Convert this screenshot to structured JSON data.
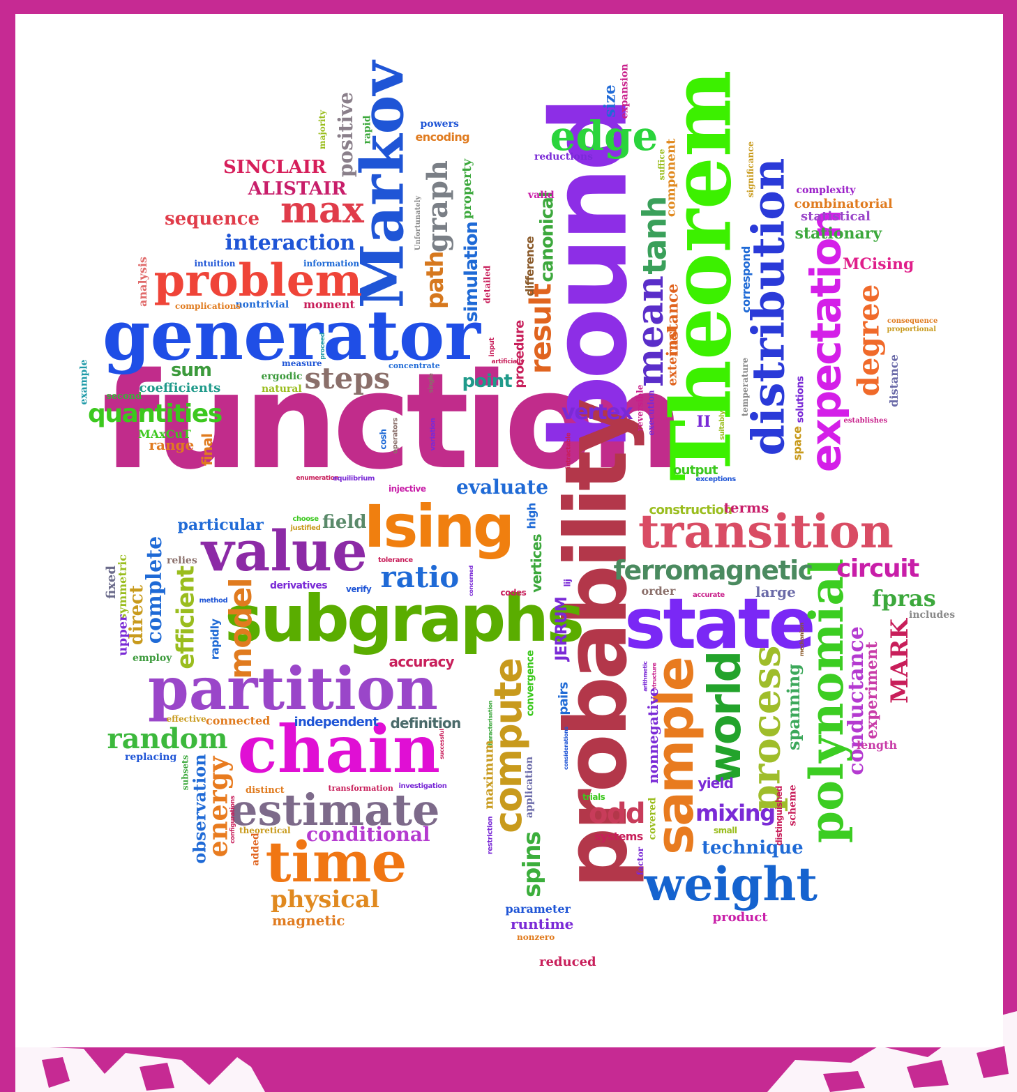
{
  "background": {
    "frame_color": "#c62a93",
    "canvas_color": "#ffffff"
  },
  "words": [
    {
      "t": "function",
      "c": "#c12c8b",
      "f": "c"
    },
    {
      "t": "Theorem",
      "c": "#3cf000",
      "f": "s"
    },
    {
      "t": "bound",
      "c": "#8d2ee6",
      "f": "c"
    },
    {
      "t": "probability",
      "c": "#b3374a",
      "f": "c"
    },
    {
      "t": "generator",
      "c": "#1f4ee6",
      "f": "s"
    },
    {
      "t": "subgraphs",
      "c": "#5aad00",
      "f": "c"
    },
    {
      "t": "partition",
      "c": "#9a46c9",
      "f": "s"
    },
    {
      "t": "chain",
      "c": "#e00fd4",
      "f": "s"
    },
    {
      "t": "Markov",
      "c": "#1f55d6",
      "f": "s"
    },
    {
      "t": "state",
      "c": "#7a28f5",
      "f": "c"
    },
    {
      "t": "transition",
      "c": "#d94c64",
      "f": "s"
    },
    {
      "t": "value",
      "c": "#8c2aa6",
      "f": "s"
    },
    {
      "t": "time",
      "c": "#f07613",
      "f": "s"
    },
    {
      "t": "Ising",
      "c": "#f07f0f",
      "f": "c"
    },
    {
      "t": "problem",
      "c": "#ef4438",
      "f": "s"
    },
    {
      "t": "estimate",
      "c": "#7d6a8a",
      "f": "s"
    },
    {
      "t": "distribution",
      "c": "#2a3ad8",
      "f": "s"
    },
    {
      "t": "polynomial",
      "c": "#3ccd22",
      "f": "s"
    },
    {
      "t": "sample",
      "c": "#e87b1f",
      "f": "c"
    },
    {
      "t": "expectation",
      "c": "#d41fe8",
      "f": "c"
    },
    {
      "t": "weight",
      "c": "#1563cf",
      "f": "s"
    },
    {
      "t": "edge",
      "c": "#2ad43c",
      "f": "s"
    },
    {
      "t": "max",
      "c": "#e03c4a",
      "f": "s"
    },
    {
      "t": "world",
      "c": "#23a32b",
      "f": "c"
    },
    {
      "t": "mean",
      "c": "#5a2ec9",
      "f": "s"
    },
    {
      "t": "compute",
      "c": "#c89a1c",
      "f": "c"
    },
    {
      "t": "process",
      "c": "#9fbd2a",
      "f": "s"
    },
    {
      "t": "degree",
      "c": "#f06a2a",
      "f": "s"
    },
    {
      "t": "random",
      "c": "#3cb83c",
      "f": "s"
    },
    {
      "t": "ratio",
      "c": "#1f6ad6",
      "f": "s"
    },
    {
      "t": "steps",
      "c": "#8a6f6a",
      "f": "s"
    },
    {
      "t": "ferromagnetic",
      "c": "#4a8a5f",
      "f": "c"
    },
    {
      "t": "tanh",
      "c": "#3aa05a",
      "f": "c"
    },
    {
      "t": "physical",
      "c": "#e0891f",
      "f": "s"
    },
    {
      "t": "energy",
      "c": "#e87b1f",
      "f": "s"
    },
    {
      "t": "model",
      "c": "#e07b1f",
      "f": "c"
    },
    {
      "t": "result",
      "c": "#e0641f",
      "f": "c"
    },
    {
      "t": "circuit",
      "c": "#c81ea8",
      "f": "c"
    },
    {
      "t": "quantities",
      "c": "#3cc81e",
      "f": "c"
    },
    {
      "t": "interaction",
      "c": "#1f55d6",
      "f": "s"
    },
    {
      "t": "conductance",
      "c": "#b43ad0",
      "f": "s"
    },
    {
      "t": "evaluate",
      "c": "#1f6ad6",
      "f": "s"
    },
    {
      "t": "efficient",
      "c": "#9abd1e",
      "f": "c"
    },
    {
      "t": "complete",
      "c": "#1f6ad6",
      "f": "s"
    },
    {
      "t": "fpras",
      "c": "#3ca83c",
      "f": "s"
    },
    {
      "t": "vertex",
      "c": "#7a2ad6",
      "f": "c"
    },
    {
      "t": "graph",
      "c": "#7a7f86",
      "f": "s"
    },
    {
      "t": "odd",
      "c": "#c83c5a",
      "f": "c"
    },
    {
      "t": "conditional",
      "c": "#b43ad0",
      "f": "s"
    },
    {
      "t": "observation",
      "c": "#1f6ad6",
      "f": "s"
    },
    {
      "t": "positive",
      "c": "#8a7f8a",
      "f": "s"
    },
    {
      "t": "mixing",
      "c": "#7a2ad6",
      "f": "c"
    },
    {
      "t": "MARK",
      "c": "#c81e5a",
      "f": "s"
    },
    {
      "t": "path",
      "c": "#d6781e",
      "f": "c"
    },
    {
      "t": "spins",
      "c": "#3cae3c",
      "f": "c"
    },
    {
      "t": "SINCLAIR",
      "c": "#d61e5a",
      "f": "s"
    },
    {
      "t": "ALISTAIR",
      "c": "#c81e6a",
      "f": "s"
    },
    {
      "t": "sequence",
      "c": "#e03c4a",
      "f": "s"
    },
    {
      "t": "field",
      "c": "#5a8a6a",
      "f": "s"
    },
    {
      "t": "technique",
      "c": "#1f6ad6",
      "f": "s"
    },
    {
      "t": "spanning",
      "c": "#3ca85a",
      "f": "s"
    },
    {
      "t": "particular",
      "c": "#1f6ad6",
      "f": "s"
    },
    {
      "t": "canonical",
      "c": "#3ca83c",
      "f": "c"
    },
    {
      "t": "instance",
      "c": "#e0641f",
      "f": "s"
    },
    {
      "t": "experiment",
      "c": "#c83ca8",
      "f": "s"
    },
    {
      "t": "magnetic",
      "c": "#e07b1f",
      "f": "s"
    },
    {
      "t": "sum",
      "c": "#3c9a3c",
      "f": "c"
    },
    {
      "t": "point",
      "c": "#1f9a8a",
      "f": "c"
    },
    {
      "t": "simulation",
      "c": "#1f6ad6",
      "f": "c"
    },
    {
      "t": "direct",
      "c": "#c89a1c",
      "f": "s"
    },
    {
      "t": "symmetric",
      "c": "#9abd1e",
      "f": "s"
    },
    {
      "t": "upper",
      "c": "#7a2ad6",
      "f": "s"
    },
    {
      "t": "fixed",
      "c": "#6a6a8a",
      "f": "s"
    },
    {
      "t": "component",
      "c": "#e0891f",
      "f": "s"
    },
    {
      "t": "external",
      "c": "#e0641f",
      "f": "s"
    },
    {
      "t": "stationary",
      "c": "#3ca83c",
      "f": "s"
    },
    {
      "t": "statistical",
      "c": "#9a46c9",
      "f": "s"
    },
    {
      "t": "combinatorial",
      "c": "#e07b1f",
      "f": "s"
    },
    {
      "t": "complexity",
      "c": "#9a1ec8",
      "f": "s"
    },
    {
      "t": "MCising",
      "c": "#e01e8a",
      "f": "s"
    },
    {
      "t": "runtime",
      "c": "#7a2ad6",
      "f": "s"
    },
    {
      "t": "coefficients",
      "c": "#1f9a8a",
      "f": "s"
    },
    {
      "t": "large",
      "c": "#6a6aa8",
      "f": "s"
    },
    {
      "t": "accuracy",
      "c": "#c81e5a",
      "f": "c"
    },
    {
      "t": "vertices",
      "c": "#3ca83c",
      "f": "c"
    },
    {
      "t": "high",
      "c": "#1f6ad6",
      "f": "c"
    },
    {
      "t": "correspond",
      "c": "#1f6ad6",
      "f": "c"
    },
    {
      "t": "JERRUM",
      "c": "#7a2ad6",
      "f": "c"
    },
    {
      "t": "yield",
      "c": "#7a2ad6",
      "f": "c"
    },
    {
      "t": "construction",
      "c": "#9abd1e",
      "f": "c"
    },
    {
      "t": "terms",
      "c": "#c81e6a",
      "f": "s"
    },
    {
      "t": "order",
      "c": "#8a6f6a",
      "f": "s"
    },
    {
      "t": "output",
      "c": "#3cc81e",
      "f": "c"
    },
    {
      "t": "space",
      "c": "#c89a1c",
      "f": "c"
    },
    {
      "t": "solutions",
      "c": "#7a2ad6",
      "f": "c"
    },
    {
      "t": "distance",
      "c": "#6a6aa8",
      "f": "s"
    },
    {
      "t": "size",
      "c": "#1f6ad6",
      "f": "s"
    },
    {
      "t": "expansion",
      "c": "#c81e8a",
      "f": "s"
    },
    {
      "t": "procedure",
      "c": "#c81e5a",
      "f": "c"
    },
    {
      "t": "difference",
      "c": "#8a5a2a",
      "f": "c"
    },
    {
      "t": "range",
      "c": "#e07b1f",
      "f": "s"
    },
    {
      "t": "final",
      "c": "#e07b1f",
      "f": "c"
    },
    {
      "t": "MAxCuT",
      "c": "#3cc81e",
      "f": "s"
    },
    {
      "t": "second",
      "c": "#3cae3c",
      "f": "s"
    },
    {
      "t": "example",
      "c": "#1f9aa8",
      "f": "s"
    },
    {
      "t": "analysis",
      "c": "#e06a6a",
      "f": "s"
    },
    {
      "t": "moment",
      "c": "#c81e5a",
      "f": "s"
    },
    {
      "t": "nontrivial",
      "c": "#1f6ad6",
      "f": "s"
    },
    {
      "t": "complications",
      "c": "#e07b1f",
      "f": "s"
    },
    {
      "t": "intuition",
      "c": "#1f55d6",
      "f": "s"
    },
    {
      "t": "information",
      "c": "#1f6ad6",
      "f": "s"
    },
    {
      "t": "measure",
      "c": "#1f55d6",
      "f": "s"
    },
    {
      "t": "ergodic",
      "c": "#3c9a3c",
      "f": "s"
    },
    {
      "t": "natural",
      "c": "#9abd1e",
      "f": "s"
    },
    {
      "t": "concentrate",
      "c": "#1f6ad6",
      "f": "s"
    },
    {
      "t": "rapid",
      "c": "#3ca83c",
      "f": "s"
    },
    {
      "t": "majority",
      "c": "#9abd1e",
      "f": "s"
    },
    {
      "t": "powers",
      "c": "#1f55d6",
      "f": "s"
    },
    {
      "t": "encoding",
      "c": "#e07b1f",
      "f": "c"
    },
    {
      "t": "property",
      "c": "#3ca83c",
      "f": "s"
    },
    {
      "t": "Unfortunately",
      "c": "#8a8a8a",
      "f": "s"
    },
    {
      "t": "reductions",
      "c": "#7a2ad6",
      "f": "s"
    },
    {
      "t": "valid",
      "c": "#c81ea8",
      "f": "s"
    },
    {
      "t": "suffice",
      "c": "#9abd1e",
      "f": "s"
    },
    {
      "t": "significance",
      "c": "#c89a1c",
      "f": "s"
    },
    {
      "t": "consequence",
      "c": "#e07b1f",
      "f": "s"
    },
    {
      "t": "proportional",
      "c": "#c89a1c",
      "f": "s"
    },
    {
      "t": "establishes",
      "c": "#c81e8a",
      "f": "s"
    },
    {
      "t": "temperature",
      "c": "#8a8a8a",
      "f": "s"
    },
    {
      "t": "reversible",
      "c": "#c81e8a",
      "f": "s"
    },
    {
      "t": "execution",
      "c": "#7a2ad6",
      "f": "s"
    },
    {
      "t": "II",
      "c": "#7a2ad6",
      "f": "s"
    },
    {
      "t": "suitably",
      "c": "#9abd1e",
      "f": "c"
    },
    {
      "t": "exceptions",
      "c": "#1f55d6",
      "f": "c"
    },
    {
      "t": "detailed",
      "c": "#c81e5a",
      "f": "s"
    },
    {
      "t": "input",
      "c": "#c81e5a",
      "f": "c"
    },
    {
      "t": "artificially",
      "c": "#c81e5a",
      "f": "c"
    },
    {
      "t": "single",
      "c": "#8a6f6a",
      "f": "c"
    },
    {
      "t": "proceed",
      "c": "#1f9aa8",
      "f": "c"
    },
    {
      "t": "cosh",
      "c": "#1f6ad6",
      "f": "c"
    },
    {
      "t": "operators",
      "c": "#8a6f6a",
      "f": "c"
    },
    {
      "t": "variation",
      "c": "#7a2ad6",
      "f": "c"
    },
    {
      "t": "intractable",
      "c": "#c81e5a",
      "f": "c"
    },
    {
      "t": "enumeration",
      "c": "#c81e5a",
      "f": "c"
    },
    {
      "t": "equilibrium",
      "c": "#7a2ad6",
      "f": "c"
    },
    {
      "t": "injective",
      "c": "#c81ea8",
      "f": "c"
    },
    {
      "t": "choose",
      "c": "#3cc81e",
      "f": "c"
    },
    {
      "t": "justified",
      "c": "#c89a1c",
      "f": "c"
    },
    {
      "t": "relies",
      "c": "#8a6f6a",
      "f": "s"
    },
    {
      "t": "tolerance",
      "c": "#c81e5a",
      "f": "c"
    },
    {
      "t": "derivatives",
      "c": "#7a2ad6",
      "f": "c"
    },
    {
      "t": "verify",
      "c": "#1f55d6",
      "f": "c"
    },
    {
      "t": "concerned",
      "c": "#7a2ad6",
      "f": "c"
    },
    {
      "t": "codes",
      "c": "#c81e5a",
      "f": "c"
    },
    {
      "t": "lij",
      "c": "#7a2ad6",
      "f": "c"
    },
    {
      "t": "method",
      "c": "#1f55d6",
      "f": "c"
    },
    {
      "t": "rapidly",
      "c": "#1f6ad6",
      "f": "c"
    },
    {
      "t": "employ",
      "c": "#3c9a3c",
      "f": "s"
    },
    {
      "t": "accurate",
      "c": "#c81e8a",
      "f": "c"
    },
    {
      "t": "includes",
      "c": "#8a8a8a",
      "f": "s"
    },
    {
      "t": "mechanism",
      "c": "#8a5a2a",
      "f": "c"
    },
    {
      "t": "arithmetic",
      "c": "#7a2ad6",
      "f": "c"
    },
    {
      "t": "structure",
      "c": "#c81e8a",
      "f": "c"
    },
    {
      "t": "convergence",
      "c": "#3cc81e",
      "f": "c"
    },
    {
      "t": "pairs",
      "c": "#1f6ad6",
      "f": "c"
    },
    {
      "t": "considerations",
      "c": "#1f55d6",
      "f": "c"
    },
    {
      "t": "characterisation",
      "c": "#3ca83c",
      "f": "c"
    },
    {
      "t": "successful",
      "c": "#c81e5a",
      "f": "c"
    },
    {
      "t": "effective",
      "c": "#c89a1c",
      "f": "s"
    },
    {
      "t": "connected",
      "c": "#e07b1f",
      "f": "s"
    },
    {
      "t": "independent",
      "c": "#1f55d6",
      "f": "c"
    },
    {
      "t": "definition",
      "c": "#4a6a6a",
      "f": "c"
    },
    {
      "t": "replacing",
      "c": "#1f55d6",
      "f": "s"
    },
    {
      "t": "subsets",
      "c": "#3ca83c",
      "f": "s"
    },
    {
      "t": "distinct",
      "c": "#e07b1f",
      "f": "s"
    },
    {
      "t": "transformation",
      "c": "#c81e5a",
      "f": "s"
    },
    {
      "t": "investigation",
      "c": "#7a2ad6",
      "f": "c"
    },
    {
      "t": "configurations",
      "c": "#c81e5a",
      "f": "c"
    },
    {
      "t": "theoretical",
      "c": "#c89a1c",
      "f": "s"
    },
    {
      "t": "added",
      "c": "#e0641f",
      "f": "s"
    },
    {
      "t": "maximum",
      "c": "#c89a1c",
      "f": "s"
    },
    {
      "t": "application",
      "c": "#6a6aa8",
      "f": "s"
    },
    {
      "t": "restriction",
      "c": "#7a2ad6",
      "f": "c"
    },
    {
      "t": "trials",
      "c": "#3cc81e",
      "f": "c"
    },
    {
      "t": "systems",
      "c": "#c81e5a",
      "f": "c"
    },
    {
      "t": "factor",
      "c": "#7a2ad6",
      "f": "s"
    },
    {
      "t": "covered",
      "c": "#9abd1e",
      "f": "s"
    },
    {
      "t": "nonnegative",
      "c": "#7a2ad6",
      "f": "s"
    },
    {
      "t": "small",
      "c": "#9abd1e",
      "f": "c"
    },
    {
      "t": "distinguished",
      "c": "#c81e5a",
      "f": "c"
    },
    {
      "t": "scheme",
      "c": "#c81e5a",
      "f": "s"
    },
    {
      "t": "length",
      "c": "#c83ca8",
      "f": "s"
    },
    {
      "t": "product",
      "c": "#c81ea8",
      "f": "s"
    },
    {
      "t": "parameter",
      "c": "#1f55d6",
      "f": "s"
    },
    {
      "t": "nonzero",
      "c": "#e07b1f",
      "f": "s"
    },
    {
      "t": "reduced",
      "c": "#c81e5a",
      "f": "s"
    },
    {
      "t": "randomised",
      "c": "#c81ea8",
      "f": "s"
    }
  ]
}
